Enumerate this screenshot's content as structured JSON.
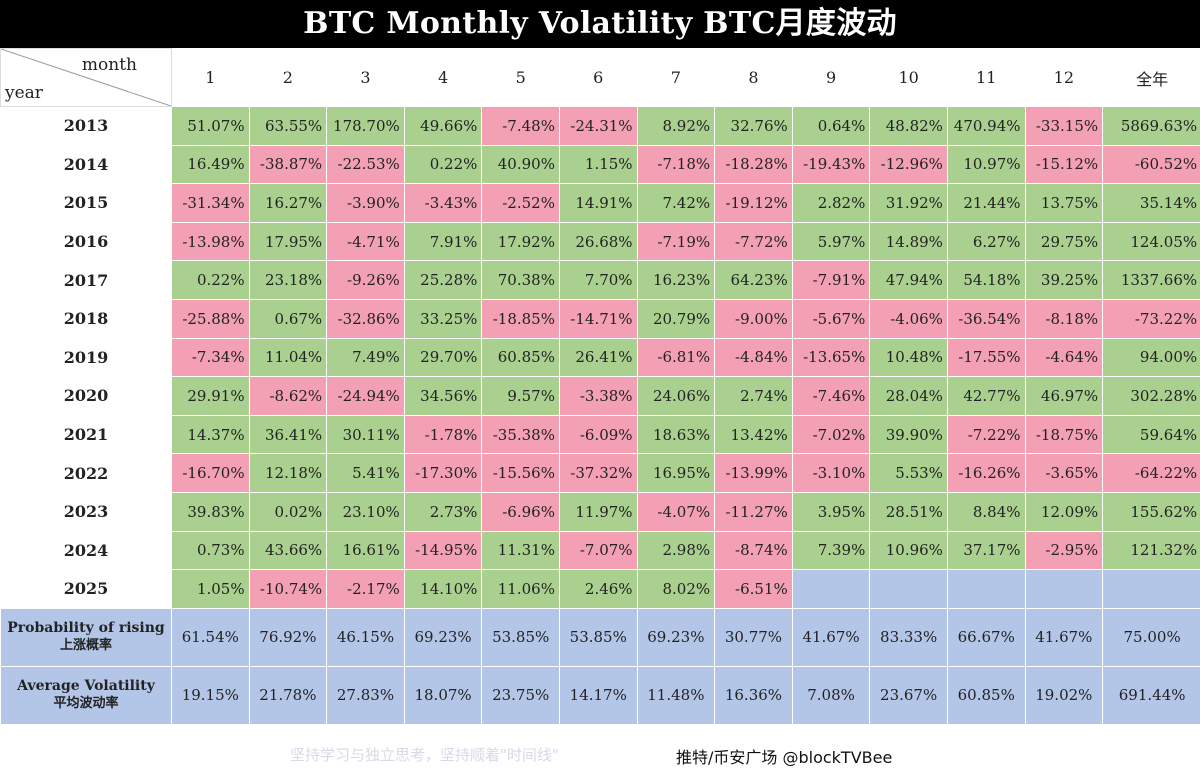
{
  "title": "BTC Monthly Volatility  BTC月度波动",
  "corner": {
    "month_label": "month",
    "year_label": "year"
  },
  "columns": [
    "1",
    "2",
    "3",
    "4",
    "5",
    "6",
    "7",
    "8",
    "9",
    "10",
    "11",
    "12",
    "全年"
  ],
  "rows": [
    {
      "year": "2013",
      "values": [
        "51.07%",
        "63.55%",
        "178.70%",
        "49.66%",
        "-7.48%",
        "-24.31%",
        "8.92%",
        "32.76%",
        "0.64%",
        "48.82%",
        "470.94%",
        "-33.15%",
        "5869.63%"
      ]
    },
    {
      "year": "2014",
      "values": [
        "16.49%",
        "-38.87%",
        "-22.53%",
        "0.22%",
        "40.90%",
        "1.15%",
        "-7.18%",
        "-18.28%",
        "-19.43%",
        "-12.96%",
        "10.97%",
        "-15.12%",
        "-60.52%"
      ]
    },
    {
      "year": "2015",
      "values": [
        "-31.34%",
        "16.27%",
        "-3.90%",
        "-3.43%",
        "-2.52%",
        "14.91%",
        "7.42%",
        "-19.12%",
        "2.82%",
        "31.92%",
        "21.44%",
        "13.75%",
        "35.14%"
      ]
    },
    {
      "year": "2016",
      "values": [
        "-13.98%",
        "17.95%",
        "-4.71%",
        "7.91%",
        "17.92%",
        "26.68%",
        "-7.19%",
        "-7.72%",
        "5.97%",
        "14.89%",
        "6.27%",
        "29.75%",
        "124.05%"
      ]
    },
    {
      "year": "2017",
      "values": [
        "0.22%",
        "23.18%",
        "-9.26%",
        "25.28%",
        "70.38%",
        "7.70%",
        "16.23%",
        "64.23%",
        "-7.91%",
        "47.94%",
        "54.18%",
        "39.25%",
        "1337.66%"
      ]
    },
    {
      "year": "2018",
      "values": [
        "-25.88%",
        "0.67%",
        "-32.86%",
        "33.25%",
        "-18.85%",
        "-14.71%",
        "20.79%",
        "-9.00%",
        "-5.67%",
        "-4.06%",
        "-36.54%",
        "-8.18%",
        "-73.22%"
      ]
    },
    {
      "year": "2019",
      "values": [
        "-7.34%",
        "11.04%",
        "7.49%",
        "29.70%",
        "60.85%",
        "26.41%",
        "-6.81%",
        "-4.84%",
        "-13.65%",
        "10.48%",
        "-17.55%",
        "-4.64%",
        "94.00%"
      ]
    },
    {
      "year": "2020",
      "values": [
        "29.91%",
        "-8.62%",
        "-24.94%",
        "34.56%",
        "9.57%",
        "-3.38%",
        "24.06%",
        "2.74%",
        "-7.46%",
        "28.04%",
        "42.77%",
        "46.97%",
        "302.28%"
      ]
    },
    {
      "year": "2021",
      "values": [
        "14.37%",
        "36.41%",
        "30.11%",
        "-1.78%",
        "-35.38%",
        "-6.09%",
        "18.63%",
        "13.42%",
        "-7.02%",
        "39.90%",
        "-7.22%",
        "-18.75%",
        "59.64%"
      ]
    },
    {
      "year": "2022",
      "values": [
        "-16.70%",
        "12.18%",
        "5.41%",
        "-17.30%",
        "-15.56%",
        "-37.32%",
        "16.95%",
        "-13.99%",
        "-3.10%",
        "5.53%",
        "-16.26%",
        "-3.65%",
        "-64.22%"
      ]
    },
    {
      "year": "2023",
      "values": [
        "39.83%",
        "0.02%",
        "23.10%",
        "2.73%",
        "-6.96%",
        "11.97%",
        "-4.07%",
        "-11.27%",
        "3.95%",
        "28.51%",
        "8.84%",
        "12.09%",
        "155.62%"
      ]
    },
    {
      "year": "2024",
      "values": [
        "0.73%",
        "43.66%",
        "16.61%",
        "-14.95%",
        "11.31%",
        "-7.07%",
        "2.98%",
        "-8.74%",
        "7.39%",
        "10.96%",
        "37.17%",
        "-2.95%",
        "121.32%"
      ]
    },
    {
      "year": "2025",
      "values": [
        "1.05%",
        "-10.74%",
        "-2.17%",
        "14.10%",
        "11.06%",
        "2.46%",
        "8.02%",
        "-6.51%",
        "",
        "",
        "",
        "",
        ""
      ]
    }
  ],
  "stats": [
    {
      "label_en": "Probability of rising",
      "label_cn": "上涨概率",
      "values": [
        "61.54%",
        "76.92%",
        "46.15%",
        "69.23%",
        "53.85%",
        "53.85%",
        "69.23%",
        "30.77%",
        "41.67%",
        "83.33%",
        "66.67%",
        "41.67%",
        "75.00%"
      ]
    },
    {
      "label_en": "Average Volatility",
      "label_cn": "平均波动率",
      "values": [
        "19.15%",
        "21.78%",
        "27.83%",
        "18.07%",
        "23.75%",
        "14.17%",
        "11.48%",
        "16.36%",
        "7.08%",
        "23.67%",
        "60.85%",
        "19.02%",
        "691.44%"
      ]
    }
  ],
  "colors": {
    "positive": "#a9d08e",
    "negative": "#f4a0b4",
    "stat": "#b4c6e7",
    "title_bg": "#000000"
  },
  "footer": {
    "credit": "推特/币安广场   @blockTVBee",
    "faint": "坚持学习与独立思考，坚持顺着\"时间线\""
  }
}
